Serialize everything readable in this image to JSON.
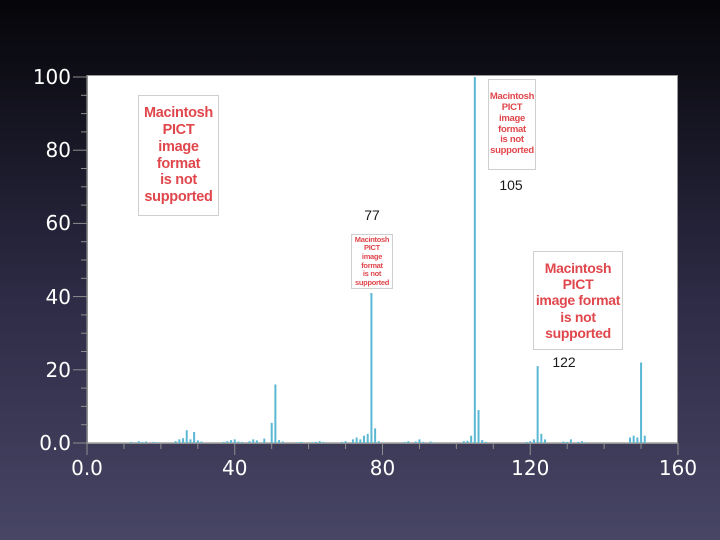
{
  "chart_data": {
    "type": "bar",
    "title": "",
    "xlabel": "",
    "ylabel": "",
    "xlim": [
      0,
      160
    ],
    "ylim": [
      0,
      100
    ],
    "x_ticks": [
      "0.0",
      "40",
      "80",
      "120",
      "160"
    ],
    "y_ticks": [
      "0.0",
      "20",
      "40",
      "60",
      "80",
      "100"
    ],
    "grid": false,
    "peak_color": "#5bb8d4",
    "x": [
      12,
      14,
      15,
      16,
      18,
      19,
      24,
      25,
      26,
      27,
      28,
      29,
      30,
      31,
      37,
      38,
      39,
      40,
      41,
      42,
      44,
      45,
      46,
      48,
      50,
      51,
      52,
      53,
      57,
      58,
      61,
      62,
      63,
      64,
      69,
      70,
      72,
      73,
      74,
      75,
      76,
      77,
      78,
      79,
      86,
      87,
      89,
      90,
      91,
      93,
      94,
      102,
      103,
      104,
      105,
      106,
      107,
      108,
      119,
      120,
      121,
      122,
      123,
      124,
      129,
      130,
      131,
      133,
      134,
      135,
      147,
      148,
      149,
      150,
      151
    ],
    "y": [
      0.3,
      0.5,
      0.3,
      0.4,
      0.3,
      0.2,
      0.5,
      1,
      1.3,
      3.5,
      1,
      3,
      0.7,
      0.4,
      0.3,
      0.5,
      0.8,
      1,
      0.4,
      0.3,
      0.5,
      1,
      0.7,
      1.2,
      5.5,
      16,
      0.8,
      0.4,
      0.2,
      0.3,
      0.2,
      0.3,
      0.5,
      0.3,
      0.3,
      0.5,
      1,
      1.5,
      1,
      2,
      2.5,
      41,
      4,
      0.5,
      0.3,
      0.5,
      0.4,
      1,
      0.3,
      0.4,
      0.2,
      0.5,
      0.6,
      2,
      100,
      9,
      0.8,
      0.3,
      0.3,
      0.5,
      1,
      21,
      2.5,
      1,
      0.4,
      0.3,
      1,
      0.3,
      0.5,
      0.2,
      1.5,
      2,
      1.5,
      22,
      2
    ]
  },
  "peak_labels": [
    {
      "text": "105"
    },
    {
      "text": "77"
    },
    {
      "text": "122"
    }
  ],
  "pict_placeholders": [
    {
      "text": "Macintosh PICT\nimage format\nis not supported"
    },
    {
      "text": "Macintosh PICT\nimage format\nis not supported"
    },
    {
      "text": "Macintosh PICT\nimage format\nis not supported"
    },
    {
      "text": "Macintosh PICT\nimage format\nis not supported"
    }
  ]
}
